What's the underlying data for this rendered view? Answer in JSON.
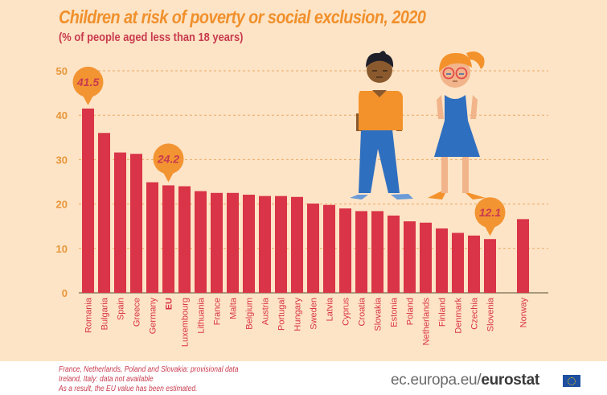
{
  "chart_data": {
    "type": "bar",
    "title": "Children at risk of poverty or social exclusion, 2020",
    "subtitle": "(% of people aged less than 18 years)",
    "xlabel": "",
    "ylabel": "",
    "ylim": [
      0,
      50
    ],
    "yticks": [
      0,
      10,
      20,
      30,
      40,
      50
    ],
    "grid": true,
    "categories": [
      "Romania",
      "Bulgaria",
      "Spain",
      "Greece",
      "Germany",
      "EU",
      "Luxembourg",
      "Lithuania",
      "France",
      "Malta",
      "Belgium",
      "Austria",
      "Portugal",
      "Hungary",
      "Sweden",
      "Latvia",
      "Cyprus",
      "Croatia",
      "Slovakia",
      "Estonia",
      "Poland",
      "Netherlands",
      "Finland",
      "Denmark",
      "Czechia",
      "Slovenia",
      "Norway"
    ],
    "values": [
      41.5,
      36.0,
      31.6,
      31.3,
      24.9,
      24.2,
      24.0,
      22.9,
      22.5,
      22.5,
      22.1,
      21.8,
      21.8,
      21.6,
      20.1,
      19.8,
      19.0,
      18.4,
      18.4,
      17.4,
      16.1,
      15.8,
      14.5,
      13.5,
      12.9,
      12.1,
      16.6
    ],
    "bold_categories": [
      "EU"
    ],
    "gap_before": [
      "Norway"
    ],
    "annotations": [
      {
        "category": "Romania",
        "label": "41.5"
      },
      {
        "category": "EU",
        "label": "24.2"
      },
      {
        "category": "Slovenia",
        "label": "12.1"
      }
    ],
    "colors": {
      "bar": "#d93447",
      "callout": "#f39433",
      "callout_text": "#c83a4e",
      "tick": "#e8963a",
      "grid": "#e9a865",
      "label": "#d93447"
    }
  },
  "header": {
    "title": "Children at risk of poverty or social exclusion, 2020",
    "subtitle": "(% of people aged less than 18 years)"
  },
  "illustration": {
    "boy-icon": "child boy figure",
    "girl-icon": "child girl figure"
  },
  "footer": {
    "notes": [
      "France, Netherlands, Poland and Slovakia: provisional data",
      "Ireland, Italy: data not available",
      "As a result, the EU value has been estimated."
    ],
    "brand_prefix": "ec.europa.eu/",
    "brand_bold": "eurostat"
  }
}
